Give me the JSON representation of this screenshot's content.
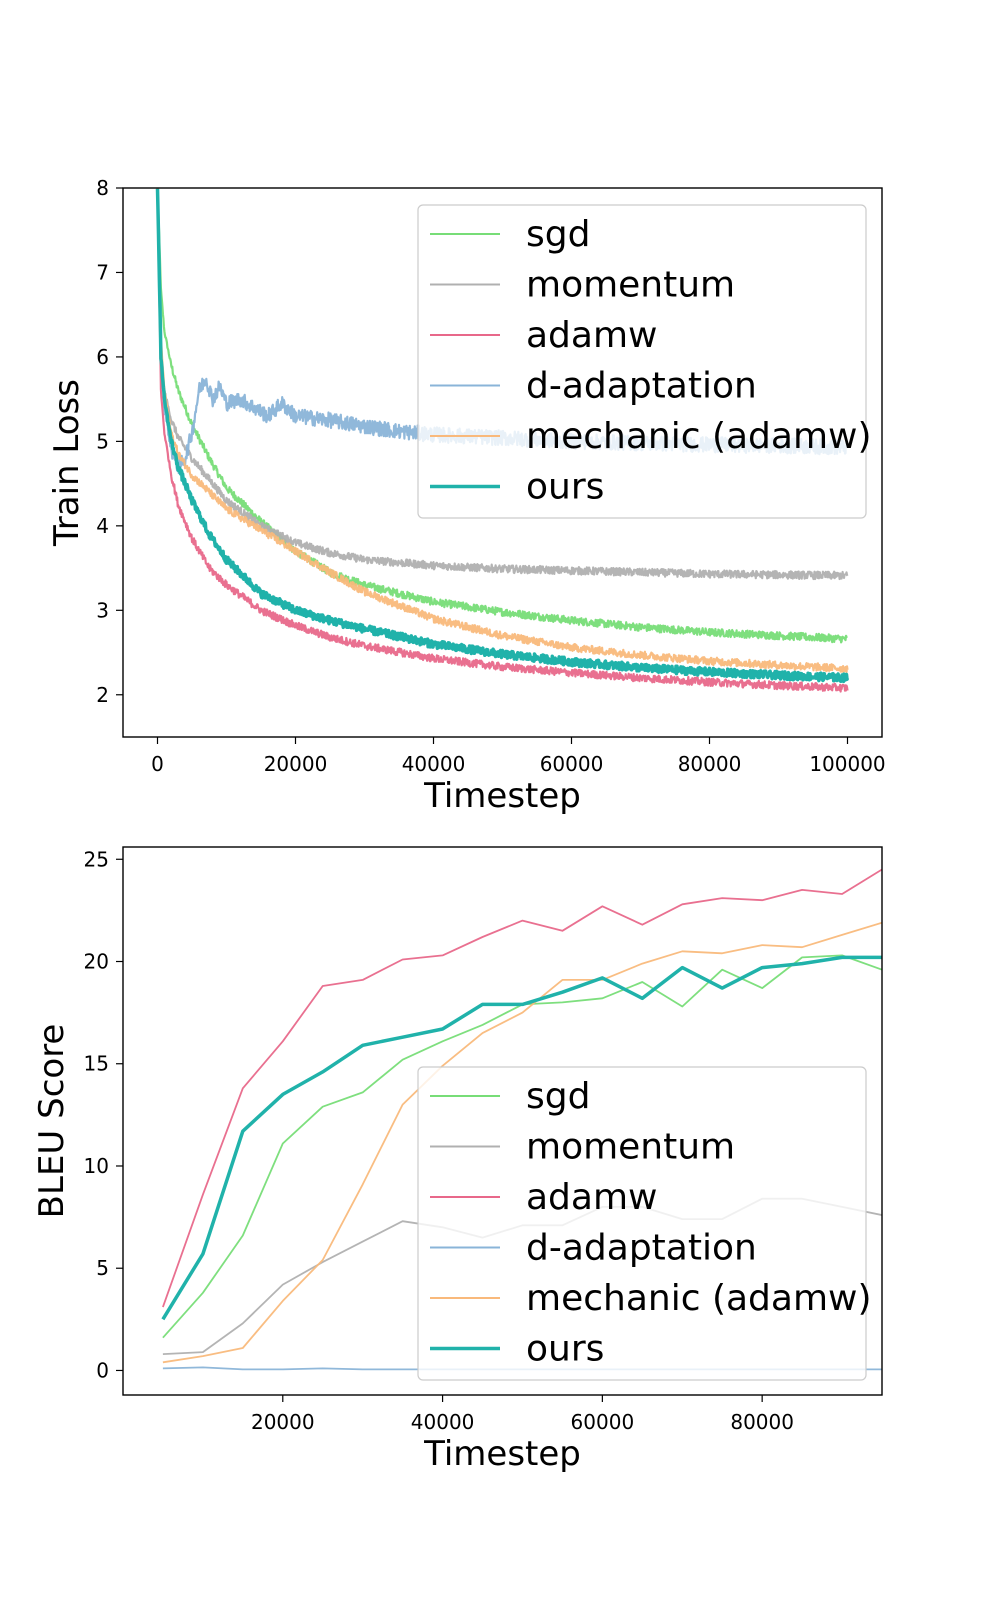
{
  "colors": {
    "sgd": "#77dd77",
    "momentum": "#b0b0b0",
    "adamw": "#e8688a",
    "d-adaptation": "#8ab4d8",
    "mechanic (adamw)": "#f9b97b",
    "ours": "#20b2aa"
  },
  "chart_data": [
    {
      "type": "line",
      "title": "",
      "xlabel": "Timestep",
      "ylabel": "Train Loss",
      "xlim": [
        -5000,
        105000
      ],
      "ylim": [
        1.5,
        8.0
      ],
      "xticks": [
        0,
        20000,
        40000,
        60000,
        80000,
        100000
      ],
      "yticks": [
        2,
        3,
        4,
        5,
        6,
        7,
        8
      ],
      "legend_position": "top-right",
      "grid": false,
      "series": [
        {
          "name": "sgd",
          "x": [
            0,
            500,
            1000,
            2000,
            3000,
            5000,
            7500,
            10000,
            15000,
            20000,
            25000,
            30000,
            40000,
            50000,
            60000,
            70000,
            80000,
            90000,
            100000
          ],
          "y": [
            8.0,
            6.8,
            6.3,
            5.9,
            5.6,
            5.2,
            4.8,
            4.45,
            4.05,
            3.7,
            3.45,
            3.3,
            3.1,
            2.98,
            2.88,
            2.8,
            2.74,
            2.7,
            2.66
          ]
        },
        {
          "name": "momentum",
          "x": [
            0,
            500,
            1000,
            2000,
            3000,
            5000,
            7500,
            10000,
            15000,
            20000,
            25000,
            30000,
            40000,
            50000,
            60000,
            70000,
            80000,
            90000,
            100000
          ],
          "y": [
            8.0,
            6.0,
            5.6,
            5.25,
            5.05,
            4.8,
            4.55,
            4.3,
            4.0,
            3.8,
            3.68,
            3.6,
            3.53,
            3.49,
            3.47,
            3.45,
            3.43,
            3.42,
            3.41
          ]
        },
        {
          "name": "adamw",
          "x": [
            0,
            500,
            1000,
            2000,
            3000,
            5000,
            7500,
            10000,
            15000,
            20000,
            25000,
            30000,
            40000,
            50000,
            60000,
            70000,
            80000,
            90000,
            100000
          ],
          "y": [
            8.0,
            5.6,
            5.1,
            4.6,
            4.25,
            3.85,
            3.5,
            3.3,
            3.0,
            2.82,
            2.68,
            2.58,
            2.43,
            2.33,
            2.26,
            2.2,
            2.15,
            2.11,
            2.08
          ]
        },
        {
          "name": "d-adaptation",
          "x": [
            0,
            500,
            1000,
            2000,
            3000,
            4000,
            5000,
            6000,
            7000,
            8000,
            9000,
            10000,
            12000,
            14000,
            16000,
            18000,
            20000,
            25000,
            30000,
            35000,
            40000,
            50000,
            60000,
            70000,
            80000,
            90000,
            100000
          ],
          "y": [
            8.0,
            6.0,
            5.4,
            4.9,
            4.7,
            4.8,
            5.1,
            5.6,
            5.75,
            5.5,
            5.65,
            5.45,
            5.5,
            5.4,
            5.3,
            5.45,
            5.3,
            5.25,
            5.18,
            5.12,
            5.08,
            5.04,
            5.0,
            4.98,
            4.96,
            4.95,
            4.93
          ]
        },
        {
          "name": "mechanic (adamw)",
          "x": [
            0,
            500,
            1000,
            2000,
            3000,
            5000,
            7500,
            10000,
            15000,
            20000,
            25000,
            30000,
            40000,
            50000,
            60000,
            70000,
            80000,
            90000,
            100000
          ],
          "y": [
            8.0,
            6.2,
            5.6,
            5.1,
            4.85,
            4.6,
            4.4,
            4.2,
            3.95,
            3.7,
            3.45,
            3.22,
            2.9,
            2.7,
            2.56,
            2.47,
            2.4,
            2.35,
            2.31
          ]
        },
        {
          "name": "ours",
          "x": [
            0,
            500,
            1000,
            2000,
            3000,
            5000,
            7500,
            10000,
            15000,
            20000,
            25000,
            30000,
            40000,
            50000,
            60000,
            70000,
            80000,
            90000,
            100000
          ],
          "y": [
            8.0,
            6.0,
            5.5,
            5.0,
            4.7,
            4.3,
            3.9,
            3.6,
            3.2,
            3.0,
            2.88,
            2.78,
            2.6,
            2.48,
            2.39,
            2.32,
            2.27,
            2.23,
            2.2
          ]
        }
      ]
    },
    {
      "type": "line",
      "title": "",
      "xlabel": "Timestep",
      "ylabel": "BLEU Score",
      "xlim": [
        0,
        95000
      ],
      "ylim": [
        -1.2,
        25.6
      ],
      "xticks": [
        20000,
        40000,
        60000,
        80000
      ],
      "yticks": [
        0,
        5,
        10,
        15,
        20,
        25
      ],
      "legend_position": "lower-right",
      "grid": false,
      "series": [
        {
          "name": "sgd",
          "x": [
            5000,
            10000,
            15000,
            20000,
            25000,
            30000,
            35000,
            40000,
            45000,
            50000,
            55000,
            60000,
            65000,
            70000,
            75000,
            80000,
            85000,
            90000,
            95000
          ],
          "y": [
            1.6,
            3.8,
            6.6,
            11.1,
            12.9,
            13.6,
            15.2,
            16.1,
            16.9,
            17.9,
            18.0,
            18.2,
            19.0,
            17.8,
            19.6,
            18.7,
            20.2,
            20.3,
            19.6
          ]
        },
        {
          "name": "momentum",
          "x": [
            5000,
            10000,
            15000,
            20000,
            25000,
            30000,
            35000,
            40000,
            45000,
            50000,
            55000,
            60000,
            65000,
            70000,
            75000,
            80000,
            85000,
            90000,
            95000
          ],
          "y": [
            0.8,
            0.9,
            2.3,
            4.2,
            5.3,
            6.3,
            7.3,
            7.0,
            6.5,
            7.1,
            7.1,
            8.0,
            8.0,
            7.4,
            7.4,
            8.4,
            8.4,
            8.0,
            7.6
          ]
        },
        {
          "name": "adamw",
          "x": [
            5000,
            10000,
            15000,
            20000,
            25000,
            30000,
            35000,
            40000,
            45000,
            50000,
            55000,
            60000,
            65000,
            70000,
            75000,
            80000,
            85000,
            90000,
            95000
          ],
          "y": [
            3.1,
            8.6,
            13.8,
            16.1,
            18.8,
            19.1,
            20.1,
            20.3,
            21.2,
            22.0,
            21.5,
            22.7,
            21.8,
            22.8,
            23.1,
            23.0,
            23.5,
            23.3,
            24.5
          ]
        },
        {
          "name": "d-adaptation",
          "x": [
            5000,
            10000,
            15000,
            20000,
            25000,
            30000,
            35000,
            40000,
            45000,
            50000,
            55000,
            60000,
            65000,
            70000,
            75000,
            80000,
            85000,
            90000,
            95000
          ],
          "y": [
            0.1,
            0.15,
            0.05,
            0.05,
            0.1,
            0.05,
            0.05,
            0.05,
            0.05,
            0.05,
            0.05,
            0.05,
            0.05,
            0.05,
            0.05,
            0.05,
            0.05,
            0.05,
            0.05
          ]
        },
        {
          "name": "mechanic (adamw)",
          "x": [
            5000,
            10000,
            15000,
            20000,
            25000,
            30000,
            35000,
            40000,
            45000,
            50000,
            55000,
            60000,
            65000,
            70000,
            75000,
            80000,
            85000,
            90000,
            95000
          ],
          "y": [
            0.4,
            0.7,
            1.1,
            3.4,
            5.4,
            9.1,
            13.0,
            14.9,
            16.5,
            17.5,
            19.1,
            19.1,
            19.9,
            20.5,
            20.4,
            20.8,
            20.7,
            21.3,
            21.9
          ]
        },
        {
          "name": "ours",
          "x": [
            5000,
            10000,
            15000,
            20000,
            25000,
            30000,
            35000,
            40000,
            45000,
            50000,
            55000,
            60000,
            65000,
            70000,
            75000,
            80000,
            85000,
            90000,
            95000
          ],
          "y": [
            2.5,
            5.7,
            11.7,
            13.5,
            14.6,
            15.9,
            16.3,
            16.7,
            17.9,
            17.9,
            18.5,
            19.2,
            18.2,
            19.7,
            18.7,
            19.7,
            19.9,
            20.2,
            20.2
          ]
        }
      ]
    }
  ]
}
